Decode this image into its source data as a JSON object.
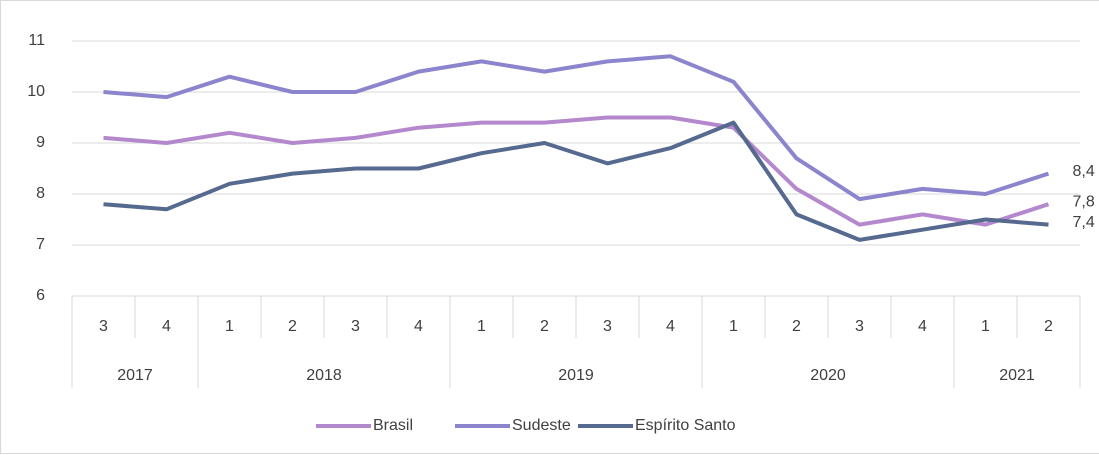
{
  "chart_data": {
    "type": "line",
    "year_groups": [
      {
        "year": "2017",
        "quarters": [
          "3",
          "4"
        ]
      },
      {
        "year": "2018",
        "quarters": [
          "1",
          "2",
          "3",
          "4"
        ]
      },
      {
        "year": "2019",
        "quarters": [
          "1",
          "2",
          "3",
          "4"
        ]
      },
      {
        "year": "2020",
        "quarters": [
          "1",
          "2",
          "3",
          "4"
        ]
      },
      {
        "year": "2021",
        "quarters": [
          "1",
          "2"
        ]
      }
    ],
    "series": [
      {
        "name": "Brasil",
        "color": "#b488cd",
        "values": [
          9.1,
          9.0,
          9.2,
          9.0,
          9.1,
          9.3,
          9.4,
          9.4,
          9.5,
          9.5,
          9.3,
          8.1,
          7.4,
          7.6,
          7.4,
          7.8
        ],
        "value_labels": [
          null,
          null,
          null,
          null,
          null,
          null,
          null,
          null,
          null,
          null,
          null,
          null,
          null,
          null,
          null,
          "7,8"
        ]
      },
      {
        "name": "Sudeste",
        "color": "#8b85cd",
        "values": [
          10.0,
          9.9,
          10.3,
          10.0,
          10.0,
          10.4,
          10.6,
          10.4,
          10.6,
          10.7,
          10.2,
          8.7,
          7.9,
          8.1,
          8.0,
          8.4
        ],
        "value_labels": [
          null,
          null,
          null,
          null,
          null,
          null,
          null,
          null,
          null,
          null,
          null,
          null,
          null,
          null,
          null,
          "8,4"
        ]
      },
      {
        "name": "Espírito Santo",
        "color": "#56698e",
        "values": [
          7.8,
          7.7,
          8.2,
          8.4,
          8.5,
          8.5,
          8.8,
          9.0,
          8.6,
          8.9,
          9.4,
          7.6,
          7.1,
          7.3,
          7.5,
          7.4
        ],
        "value_labels": [
          null,
          null,
          null,
          null,
          null,
          null,
          null,
          null,
          null,
          null,
          null,
          null,
          null,
          null,
          null,
          "7,4"
        ]
      }
    ],
    "ylim": [
      6,
      11
    ],
    "yticks": [
      6,
      7,
      8,
      9,
      10,
      11
    ],
    "grid": true,
    "legend": "bottom"
  }
}
